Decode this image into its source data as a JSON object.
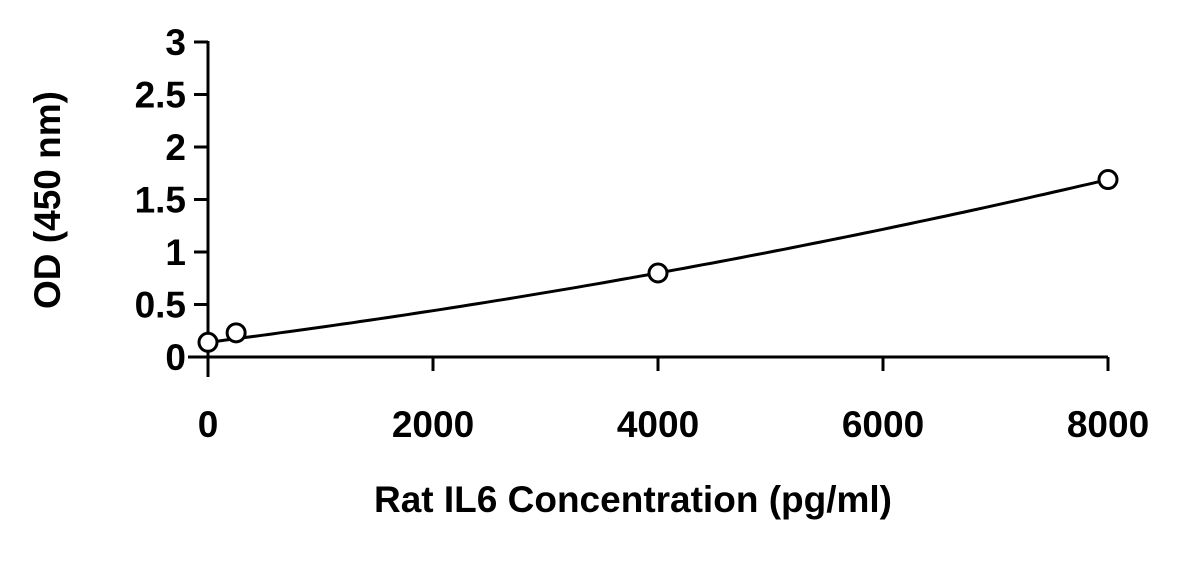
{
  "chart_data": {
    "type": "scatter",
    "title": "",
    "xlabel": "Rat IL6 Concentration (pg/ml)",
    "ylabel": "OD (450 nm)",
    "xlim": [
      0,
      8000
    ],
    "ylim": [
      0,
      3
    ],
    "xticks": [
      0,
      2000,
      4000,
      6000,
      8000
    ],
    "yticks": [
      0,
      0.5,
      1,
      1.5,
      2,
      2.5,
      3
    ],
    "ytick_labels": [
      "0",
      "0.5",
      "1",
      "1.5",
      "2",
      "2.5",
      "3"
    ],
    "xtick_labels": [
      "0",
      "2000",
      "4000",
      "6000",
      "8000"
    ],
    "grid": false,
    "points": [
      {
        "x": 0,
        "y": 0.14
      },
      {
        "x": 250,
        "y": 0.23
      },
      {
        "x": 4000,
        "y": 0.8
      },
      {
        "x": 8000,
        "y": 1.69
      }
    ],
    "trendline": "smooth curve",
    "marker": "open circle",
    "color": "#000000"
  }
}
